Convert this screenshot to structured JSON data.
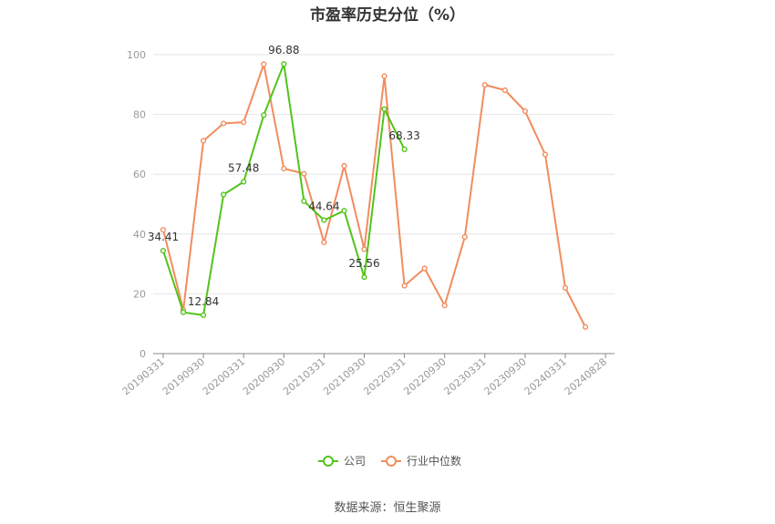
{
  "chart_data": {
    "type": "line",
    "title": "市盈率历史分位（%）",
    "x": [
      "20190331",
      "20190630",
      "20190930",
      "20191231",
      "20200331",
      "20200630",
      "20200930",
      "20201231",
      "20210331",
      "20210630",
      "20210930",
      "20211231",
      "20220331",
      "20220630",
      "20220930",
      "20221231",
      "20230331",
      "20230630",
      "20230930",
      "20231231",
      "20240331",
      "20240628"
    ],
    "xtick_labels": [
      "20190331",
      "20190930",
      "20200331",
      "20200930",
      "20210331",
      "20210930",
      "20220331",
      "20220930",
      "20230331",
      "20230930",
      "20240331",
      "20240828"
    ],
    "ylim": [
      0,
      100
    ],
    "yticks": [
      0,
      20,
      40,
      60,
      80,
      100
    ],
    "grid": true,
    "legend_position": "bottom",
    "series": [
      {
        "name": "公司",
        "color": "#52c41a",
        "values": [
          34.41,
          13.8,
          12.84,
          53.2,
          57.48,
          79.8,
          96.88,
          51.0,
          44.64,
          47.8,
          25.56,
          81.8,
          68.33,
          null,
          null,
          null,
          null,
          null,
          null,
          null,
          null,
          null
        ],
        "data_labels": [
          {
            "index": 0,
            "text": "34.41"
          },
          {
            "index": 2,
            "text": "12.84"
          },
          {
            "index": 4,
            "text": "57.48"
          },
          {
            "index": 6,
            "text": "96.88"
          },
          {
            "index": 8,
            "text": "44.64"
          },
          {
            "index": 10,
            "text": "25.56"
          },
          {
            "index": 12,
            "text": "68.33"
          }
        ]
      },
      {
        "name": "行业中位数",
        "color": "#f28c5e",
        "values": [
          41.4,
          14.6,
          71.2,
          77.0,
          77.4,
          96.8,
          61.9,
          60.2,
          37.2,
          62.8,
          34.9,
          92.8,
          22.7,
          28.5,
          16.1,
          39.0,
          89.9,
          88.1,
          81.1,
          66.6,
          22.0,
          8.9
        ]
      }
    ]
  },
  "footer": {
    "source": "数据来源：恒生聚源"
  }
}
